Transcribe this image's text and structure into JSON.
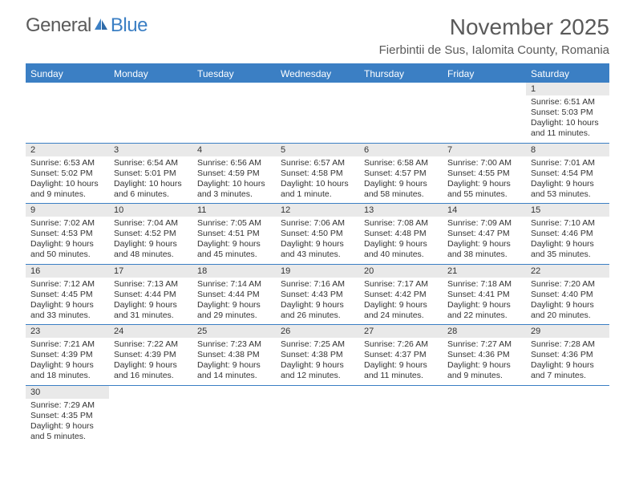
{
  "logo": {
    "text1": "General",
    "text2": "Blue"
  },
  "title": "November 2025",
  "location": "Fierbintii de Sus, Ialomita County, Romania",
  "colors": {
    "accent": "#3b7fc4",
    "header_text": "#ffffff",
    "daynum_bg": "#e9e9e9",
    "text": "#333333",
    "logo_gray": "#5a5a5a"
  },
  "weekdays": [
    "Sunday",
    "Monday",
    "Tuesday",
    "Wednesday",
    "Thursday",
    "Friday",
    "Saturday"
  ],
  "weeks": [
    [
      null,
      null,
      null,
      null,
      null,
      null,
      {
        "n": "1",
        "sr": "6:51 AM",
        "ss": "5:03 PM",
        "dl": "10 hours and 11 minutes."
      }
    ],
    [
      {
        "n": "2",
        "sr": "6:53 AM",
        "ss": "5:02 PM",
        "dl": "10 hours and 9 minutes."
      },
      {
        "n": "3",
        "sr": "6:54 AM",
        "ss": "5:01 PM",
        "dl": "10 hours and 6 minutes."
      },
      {
        "n": "4",
        "sr": "6:56 AM",
        "ss": "4:59 PM",
        "dl": "10 hours and 3 minutes."
      },
      {
        "n": "5",
        "sr": "6:57 AM",
        "ss": "4:58 PM",
        "dl": "10 hours and 1 minute."
      },
      {
        "n": "6",
        "sr": "6:58 AM",
        "ss": "4:57 PM",
        "dl": "9 hours and 58 minutes."
      },
      {
        "n": "7",
        "sr": "7:00 AM",
        "ss": "4:55 PM",
        "dl": "9 hours and 55 minutes."
      },
      {
        "n": "8",
        "sr": "7:01 AM",
        "ss": "4:54 PM",
        "dl": "9 hours and 53 minutes."
      }
    ],
    [
      {
        "n": "9",
        "sr": "7:02 AM",
        "ss": "4:53 PM",
        "dl": "9 hours and 50 minutes."
      },
      {
        "n": "10",
        "sr": "7:04 AM",
        "ss": "4:52 PM",
        "dl": "9 hours and 48 minutes."
      },
      {
        "n": "11",
        "sr": "7:05 AM",
        "ss": "4:51 PM",
        "dl": "9 hours and 45 minutes."
      },
      {
        "n": "12",
        "sr": "7:06 AM",
        "ss": "4:50 PM",
        "dl": "9 hours and 43 minutes."
      },
      {
        "n": "13",
        "sr": "7:08 AM",
        "ss": "4:48 PM",
        "dl": "9 hours and 40 minutes."
      },
      {
        "n": "14",
        "sr": "7:09 AM",
        "ss": "4:47 PM",
        "dl": "9 hours and 38 minutes."
      },
      {
        "n": "15",
        "sr": "7:10 AM",
        "ss": "4:46 PM",
        "dl": "9 hours and 35 minutes."
      }
    ],
    [
      {
        "n": "16",
        "sr": "7:12 AM",
        "ss": "4:45 PM",
        "dl": "9 hours and 33 minutes."
      },
      {
        "n": "17",
        "sr": "7:13 AM",
        "ss": "4:44 PM",
        "dl": "9 hours and 31 minutes."
      },
      {
        "n": "18",
        "sr": "7:14 AM",
        "ss": "4:44 PM",
        "dl": "9 hours and 29 minutes."
      },
      {
        "n": "19",
        "sr": "7:16 AM",
        "ss": "4:43 PM",
        "dl": "9 hours and 26 minutes."
      },
      {
        "n": "20",
        "sr": "7:17 AM",
        "ss": "4:42 PM",
        "dl": "9 hours and 24 minutes."
      },
      {
        "n": "21",
        "sr": "7:18 AM",
        "ss": "4:41 PM",
        "dl": "9 hours and 22 minutes."
      },
      {
        "n": "22",
        "sr": "7:20 AM",
        "ss": "4:40 PM",
        "dl": "9 hours and 20 minutes."
      }
    ],
    [
      {
        "n": "23",
        "sr": "7:21 AM",
        "ss": "4:39 PM",
        "dl": "9 hours and 18 minutes."
      },
      {
        "n": "24",
        "sr": "7:22 AM",
        "ss": "4:39 PM",
        "dl": "9 hours and 16 minutes."
      },
      {
        "n": "25",
        "sr": "7:23 AM",
        "ss": "4:38 PM",
        "dl": "9 hours and 14 minutes."
      },
      {
        "n": "26",
        "sr": "7:25 AM",
        "ss": "4:38 PM",
        "dl": "9 hours and 12 minutes."
      },
      {
        "n": "27",
        "sr": "7:26 AM",
        "ss": "4:37 PM",
        "dl": "9 hours and 11 minutes."
      },
      {
        "n": "28",
        "sr": "7:27 AM",
        "ss": "4:36 PM",
        "dl": "9 hours and 9 minutes."
      },
      {
        "n": "29",
        "sr": "7:28 AM",
        "ss": "4:36 PM",
        "dl": "9 hours and 7 minutes."
      }
    ],
    [
      {
        "n": "30",
        "sr": "7:29 AM",
        "ss": "4:35 PM",
        "dl": "9 hours and 5 minutes."
      },
      null,
      null,
      null,
      null,
      null,
      null
    ]
  ],
  "labels": {
    "sunrise": "Sunrise:",
    "sunset": "Sunset:",
    "daylight": "Daylight:"
  }
}
